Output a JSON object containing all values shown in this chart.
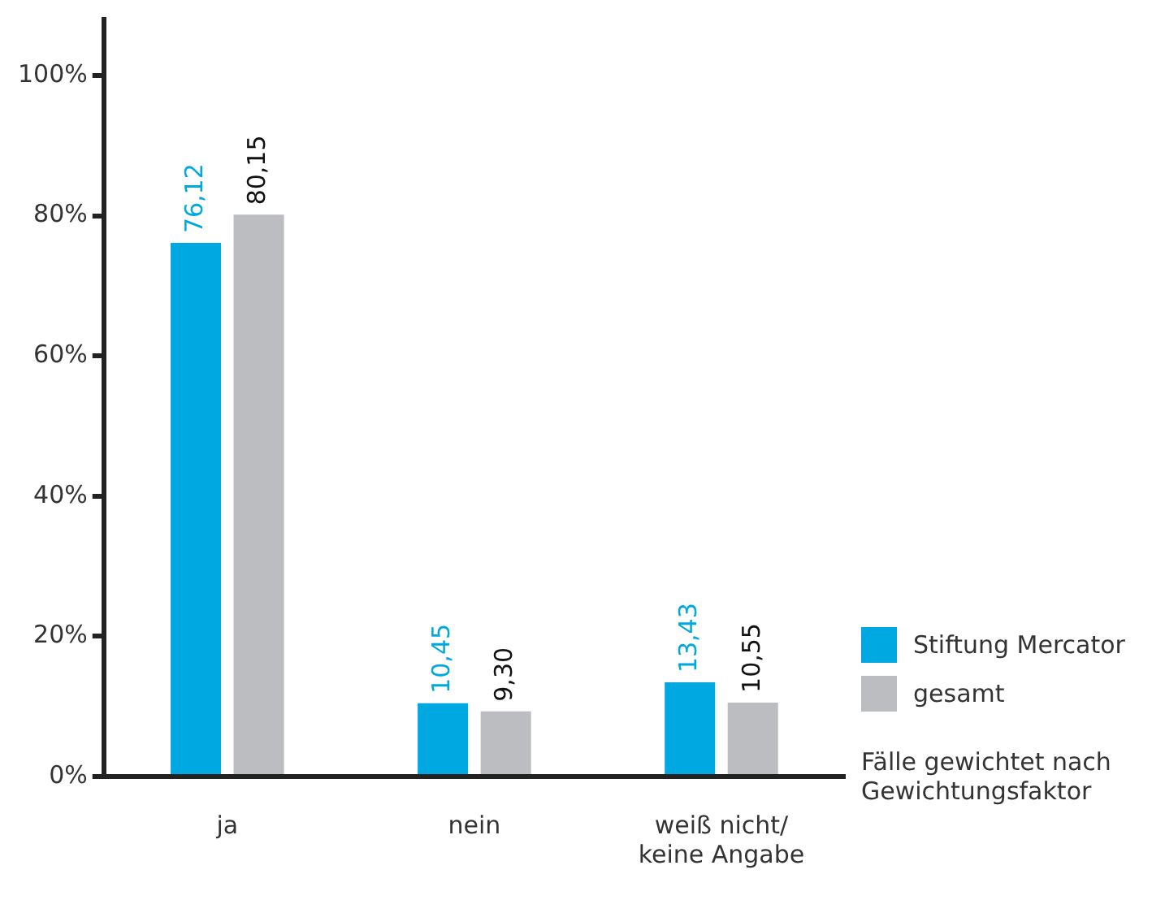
{
  "chart_data": {
    "type": "bar",
    "categories": [
      "ja",
      "nein",
      "weiß nicht/\nkeine Angabe"
    ],
    "series": [
      {
        "name": "Stiftung Mercator",
        "color": "#00a8e1",
        "values": [
          76.12,
          10.45,
          13.43
        ],
        "value_labels": [
          "76,12",
          "10,45",
          "13,43"
        ]
      },
      {
        "name": "gesamt",
        "color": "#bcbdc1",
        "values": [
          80.15,
          9.3,
          10.55
        ],
        "value_labels": [
          "80,15",
          "9,30",
          "10,55"
        ]
      }
    ],
    "ylim": [
      0,
      108
    ],
    "yticks": [
      {
        "value": 0,
        "label": "0%"
      },
      {
        "value": 20,
        "label": "20%"
      },
      {
        "value": 40,
        "label": "40%"
      },
      {
        "value": 60,
        "label": "60%"
      },
      {
        "value": 80,
        "label": "80%"
      },
      {
        "value": 100,
        "label": "100%"
      }
    ],
    "grid": false,
    "legend": "right",
    "annotations": [
      "Fälle gewichtet nach\nGewichtungsfaktor"
    ]
  }
}
